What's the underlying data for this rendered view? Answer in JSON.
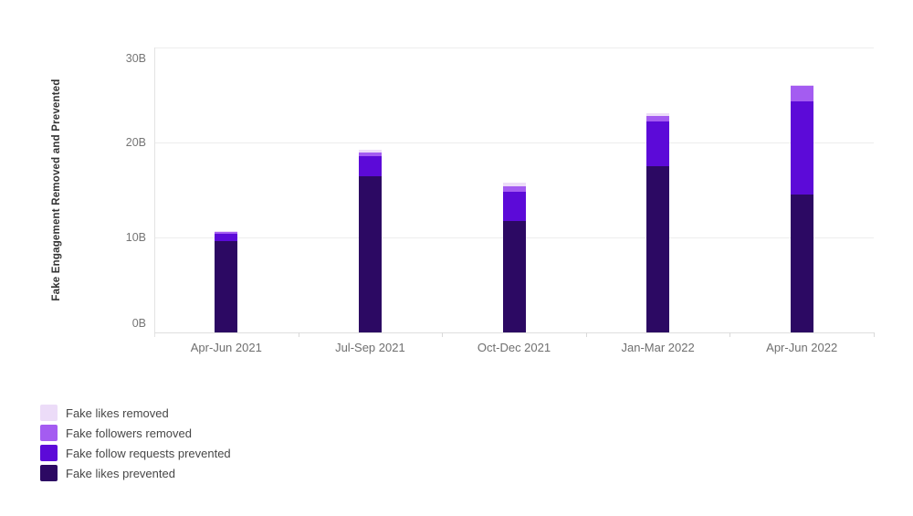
{
  "chart_data": {
    "type": "bar",
    "stacked": true,
    "title": "",
    "xlabel": "",
    "ylabel": "Fake Engagement Removed and Prevented",
    "unit": "B",
    "ylim": [
      0,
      30
    ],
    "grid": true,
    "legend_position": "bottom-left",
    "categories": [
      "Apr-Jun 2021",
      "Jul-Sep 2021",
      "Oct-Dec 2021",
      "Jan-Mar 2022",
      "Apr-Jun 2022"
    ],
    "yticks": [
      {
        "value": 0,
        "label": "0B"
      },
      {
        "value": 10,
        "label": "10B"
      },
      {
        "value": 20,
        "label": "20B"
      },
      {
        "value": 30,
        "label": "30B"
      }
    ],
    "series": [
      {
        "name": "Fake likes prevented",
        "color": "#2c0963",
        "values": [
          9.6,
          16.4,
          11.7,
          17.5,
          14.5
        ]
      },
      {
        "name": "Fake follow requests prevented",
        "color": "#5c0ad8",
        "values": [
          0.8,
          2.1,
          3.1,
          4.7,
          9.8
        ]
      },
      {
        "name": "Fake followers removed",
        "color": "#a45cf1",
        "values": [
          0.2,
          0.4,
          0.6,
          0.6,
          1.6
        ]
      },
      {
        "name": "Fake likes removed",
        "color": "#ecdcf8",
        "values": [
          0.1,
          0.3,
          0.4,
          0.3,
          0.1
        ]
      }
    ],
    "totals": [
      10.7,
      19.2,
      15.8,
      23.1,
      26.0
    ]
  },
  "colors": {
    "background": "#ffffff",
    "gridline": "#ededed",
    "axis": "#dedede",
    "y_tick_text": "#757575",
    "x_tick_text": "#6f6f6f",
    "legend_text": "#474747",
    "y_title_text": "#333333"
  }
}
